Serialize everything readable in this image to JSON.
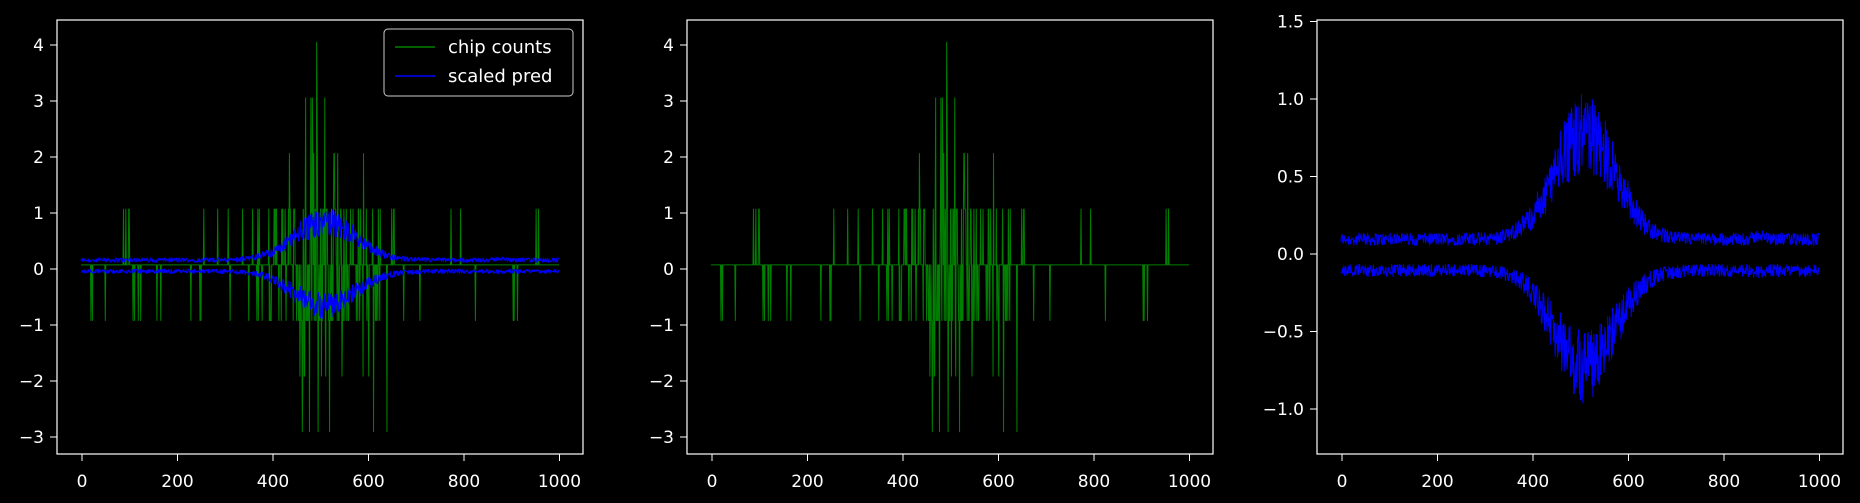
{
  "chart_data": [
    {
      "type": "line",
      "title": "",
      "xlabel": "",
      "ylabel": "",
      "xlim": [
        -50,
        1050
      ],
      "ylim": [
        -3.4,
        4.4
      ],
      "xticks": [
        0,
        200,
        400,
        600,
        800,
        1000
      ],
      "yticks": [
        -3,
        -2,
        -1,
        0,
        1,
        2,
        3,
        4
      ],
      "legend": {
        "placement": "upper right",
        "entries": [
          "chip counts",
          "scaled pred"
        ]
      },
      "n_points": 1001,
      "series": [
        {
          "name": "chip counts",
          "color": "#008000",
          "kind": "integer counts",
          "x_range": [
            0,
            1000
          ],
          "min": -3,
          "max": 4,
          "peaks": [
            {
              "x": 493,
              "y": 4
            },
            {
              "x": 470,
              "y": 3
            },
            {
              "x": 481,
              "y": 3
            },
            {
              "x": 510,
              "y": 3
            },
            {
              "x": 520,
              "y": -3
            },
            {
              "x": 478,
              "y": -3
            },
            {
              "x": 612,
              "y": -3
            },
            {
              "x": 640,
              "y": -3
            }
          ]
        },
        {
          "name": "scaled pred",
          "color": "#0000ff",
          "kind": "two envelopes (upper, lower)",
          "x_range": [
            0,
            1000
          ],
          "upper_peak": {
            "x": 520,
            "y": 1.37
          },
          "lower_trough": {
            "x": 530,
            "y": -1.18
          }
        }
      ]
    },
    {
      "type": "line",
      "title": "",
      "xlabel": "",
      "ylabel": "",
      "xlim": [
        -50,
        1050
      ],
      "ylim": [
        -3.4,
        4.4
      ],
      "xticks": [
        0,
        200,
        400,
        600,
        800,
        1000
      ],
      "yticks": [
        -3,
        -2,
        -1,
        0,
        1,
        2,
        3,
        4
      ],
      "series": [
        {
          "color": "#008000",
          "kind": "integer counts",
          "x_range": [
            0,
            1000
          ],
          "min": -3,
          "max": 4
        }
      ]
    },
    {
      "type": "line",
      "title": "",
      "xlabel": "",
      "ylabel": "",
      "xlim": [
        -50,
        1050
      ],
      "ylim": [
        -1.3,
        1.5
      ],
      "xticks": [
        0,
        200,
        400,
        600,
        800,
        1000
      ],
      "yticks": [
        -1.0,
        -0.5,
        0.0,
        0.5,
        1.0,
        1.5
      ],
      "series": [
        {
          "color": "#0000ff",
          "kind": "upper envelope",
          "x_range": [
            0,
            1000
          ],
          "base": 0.07,
          "peak": {
            "x": 520,
            "y": 1.37
          }
        },
        {
          "color": "#0000ff",
          "kind": "lower envelope",
          "x_range": [
            0,
            1000
          ],
          "base": -0.1,
          "trough": {
            "x": 530,
            "y": -1.18
          }
        }
      ]
    }
  ],
  "tick_labels": {
    "x": [
      "0",
      "200",
      "400",
      "600",
      "800",
      "1000"
    ],
    "y_counts": [
      "−3",
      "−2",
      "−1",
      "0",
      "1",
      "2",
      "3",
      "4"
    ],
    "y_pred": [
      "−1.0",
      "−0.5",
      "0.0",
      "0.5",
      "1.0",
      "1.5"
    ]
  },
  "legend": {
    "chip_counts_label": "chip counts",
    "scaled_pred_label": "scaled pred"
  }
}
